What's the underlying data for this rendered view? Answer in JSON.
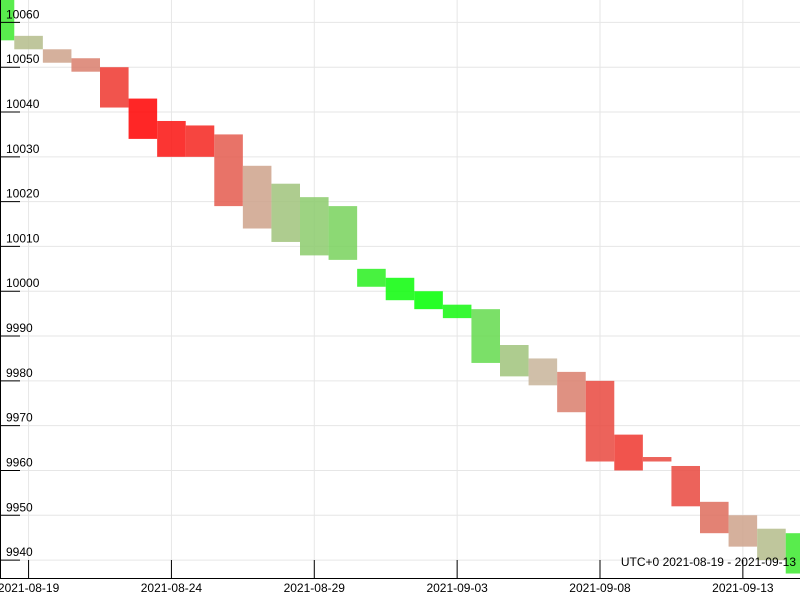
{
  "chart_data": {
    "type": "area",
    "timezone_range_label": "UTC+0 2021-08-19 - 2021-09-13",
    "x_axis": {
      "ticks": [
        "2021-08-19",
        "2021-08-24",
        "2021-08-29",
        "2021-09-03",
        "2021-09-08",
        "2021-09-13"
      ],
      "range": [
        "2021-08-18",
        "2021-09-15"
      ]
    },
    "y_axis": {
      "ticks": [
        9940,
        9950,
        9960,
        9970,
        9980,
        9990,
        10000,
        10010,
        10020,
        10030,
        10040,
        10050,
        10060
      ],
      "range": [
        9936,
        10065
      ]
    },
    "grid": true,
    "color_scale": {
      "up": "#00ff00",
      "neutral": "#c8b49a",
      "down": "#ff0000"
    },
    "series": [
      {
        "points": [
          {
            "date": "2021-08-18",
            "low": 10056,
            "high": 10065,
            "trend": 0.7
          },
          {
            "date": "2021-08-19",
            "low": 10054,
            "high": 10057,
            "trend": 0.1
          },
          {
            "date": "2021-08-20",
            "low": 10051,
            "high": 10054,
            "trend": -0.1
          },
          {
            "date": "2021-08-21",
            "low": 10049,
            "high": 10052,
            "trend": -0.3
          },
          {
            "date": "2021-08-22",
            "low": 10041,
            "high": 10050,
            "trend": -0.7
          },
          {
            "date": "2021-08-23",
            "low": 10034,
            "high": 10043,
            "trend": -1.0
          },
          {
            "date": "2021-08-24",
            "low": 10030,
            "high": 10038,
            "trend": -0.9
          },
          {
            "date": "2021-08-25",
            "low": 10030,
            "high": 10037,
            "trend": -0.8
          },
          {
            "date": "2021-08-26",
            "low": 10019,
            "high": 10035,
            "trend": -0.5
          },
          {
            "date": "2021-08-27",
            "low": 10014,
            "high": 10028,
            "trend": -0.1
          },
          {
            "date": "2021-08-28",
            "low": 10011,
            "high": 10024,
            "trend": 0.2
          },
          {
            "date": "2021-08-29",
            "low": 10008,
            "high": 10021,
            "trend": 0.3
          },
          {
            "date": "2021-08-30",
            "low": 10007,
            "high": 10019,
            "trend": 0.4
          },
          {
            "date": "2021-08-31",
            "low": 10001,
            "high": 10005,
            "trend": 0.8
          },
          {
            "date": "2021-09-01",
            "low": 9998,
            "high": 10003,
            "trend": 0.95
          },
          {
            "date": "2021-09-02",
            "low": 9996,
            "high": 10000,
            "trend": 1.0
          },
          {
            "date": "2021-09-03",
            "low": 9994,
            "high": 9997,
            "trend": 0.9
          },
          {
            "date": "2021-09-04",
            "low": 9984,
            "high": 9996,
            "trend": 0.5
          },
          {
            "date": "2021-09-05",
            "low": 9981,
            "high": 9988,
            "trend": 0.2
          },
          {
            "date": "2021-09-06",
            "low": 9979,
            "high": 9985,
            "trend": 0.0
          },
          {
            "date": "2021-09-07",
            "low": 9973,
            "high": 9982,
            "trend": -0.3
          },
          {
            "date": "2021-09-08",
            "low": 9962,
            "high": 9980,
            "trend": -0.6
          },
          {
            "date": "2021-09-09",
            "low": 9960,
            "high": 9968,
            "trend": -0.7
          },
          {
            "date": "2021-09-10",
            "low": 9962,
            "high": 9963,
            "trend": -0.6
          },
          {
            "date": "2021-09-11",
            "low": 9952,
            "high": 9961,
            "trend": -0.6
          },
          {
            "date": "2021-09-12",
            "low": 9946,
            "high": 9953,
            "trend": -0.4
          },
          {
            "date": "2021-09-13",
            "low": 9943,
            "high": 9950,
            "trend": -0.1
          },
          {
            "date": "2021-09-14",
            "low": 9940,
            "high": 9947,
            "trend": 0.1
          },
          {
            "date": "2021-09-15",
            "low": 9937,
            "high": 9946,
            "trend": 0.7
          }
        ]
      }
    ]
  }
}
